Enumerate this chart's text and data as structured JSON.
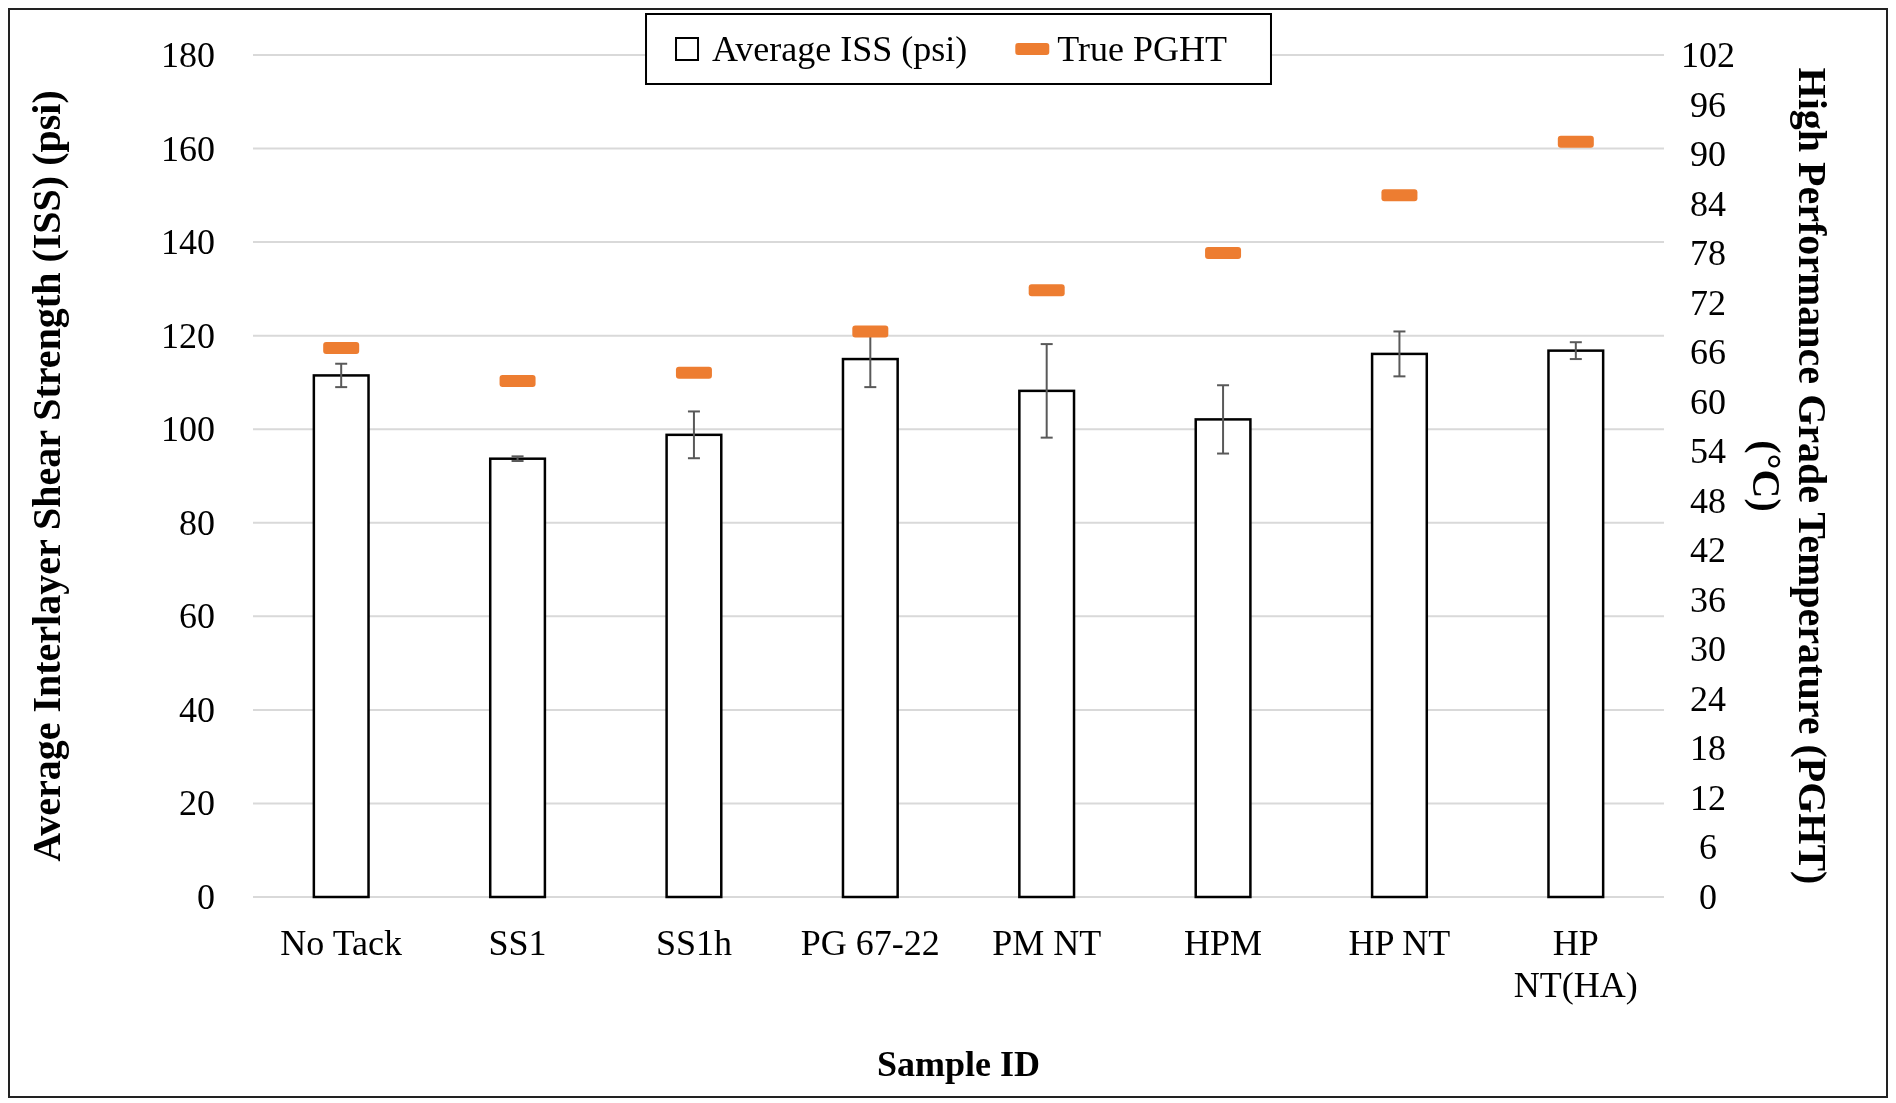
{
  "chart_data": {
    "type": "bar",
    "xlabel": "Sample ID",
    "ylabel": "Average Interlayer Shear Strength (ISS) (psi)",
    "y2label": "High Performance Grade Temperature (PGHT) (°C)",
    "categories": [
      "No Tack",
      "SS1",
      "SS1h",
      "PG 67-22",
      "PM NT",
      "HPM",
      "HP NT",
      "HP NT(HA)"
    ],
    "series": [
      {
        "name": "Average ISS (psi)",
        "color": "#ffffff",
        "values": [
          111.5,
          93.7,
          98.8,
          115.0,
          108.2,
          102.1,
          116.1,
          116.8
        ],
        "errors": [
          2.5,
          0.5,
          5,
          6,
          10,
          7.3,
          4.8,
          1.8
        ]
      },
      {
        "name": "True PGHT",
        "type": "scatter",
        "axis": "y2",
        "color": "#ed7d31",
        "values": [
          66.5,
          62.5,
          63.5,
          68.5,
          73.5,
          78,
          85,
          91.5
        ]
      }
    ],
    "ylim": [
      0,
      180
    ],
    "yticks": [
      0,
      20,
      40,
      60,
      80,
      100,
      120,
      140,
      160,
      180
    ],
    "y2lim": [
      0,
      102
    ],
    "y2ticks": [
      0,
      6,
      12,
      18,
      24,
      30,
      36,
      42,
      48,
      54,
      60,
      66,
      72,
      78,
      84,
      90,
      96,
      102
    ],
    "grid": "y",
    "legend": "top"
  }
}
